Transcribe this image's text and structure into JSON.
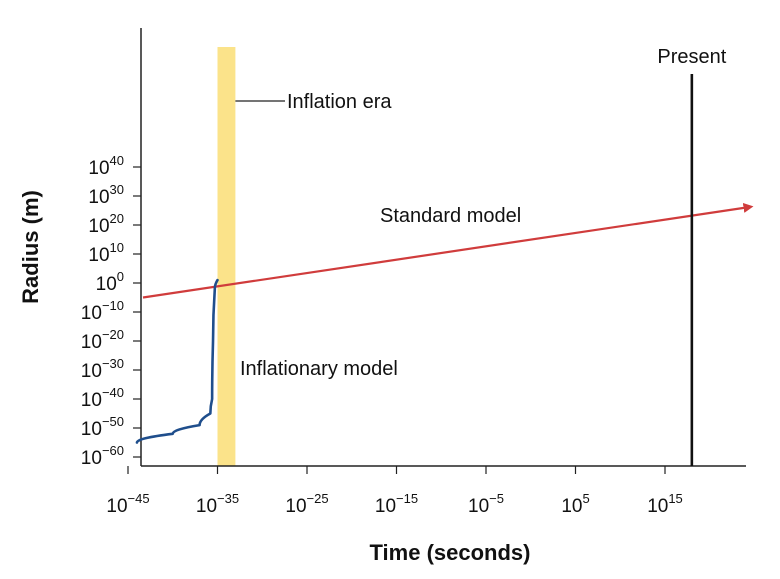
{
  "chart_data": {
    "type": "line",
    "title": "",
    "xlabel": "Time (seconds)",
    "ylabel": "Radius (m)",
    "x_scale": "log",
    "y_scale": "log",
    "x_ticks": [
      {
        "base": "10",
        "exp": "−45",
        "value": -45
      },
      {
        "base": "10",
        "exp": "−35",
        "value": -35
      },
      {
        "base": "10",
        "exp": "−25",
        "value": -25
      },
      {
        "base": "10",
        "exp": "−15",
        "value": -15
      },
      {
        "base": "10",
        "exp": "−5",
        "value": -5
      },
      {
        "base": "10",
        "exp": "5",
        "value": 5
      },
      {
        "base": "10",
        "exp": "15",
        "value": 15
      }
    ],
    "y_ticks": [
      {
        "base": "10",
        "exp": "40",
        "value": 40
      },
      {
        "base": "10",
        "exp": "30",
        "value": 30
      },
      {
        "base": "10",
        "exp": "20",
        "value": 20
      },
      {
        "base": "10",
        "exp": "10",
        "value": 10
      },
      {
        "base": "10",
        "exp": "0",
        "value": 0
      },
      {
        "base": "10",
        "exp": "−10",
        "value": -10
      },
      {
        "base": "10",
        "exp": "−20",
        "value": -20
      },
      {
        "base": "10",
        "exp": "−30",
        "value": -30
      },
      {
        "base": "10",
        "exp": "−40",
        "value": -40
      },
      {
        "base": "10",
        "exp": "−50",
        "value": -50
      },
      {
        "base": "10",
        "exp": "−60",
        "value": -60
      }
    ],
    "series": [
      {
        "name": "Standard model",
        "color": "#d03c3c",
        "x": [
          -45,
          24
        ],
        "y": [
          -5,
          26
        ]
      },
      {
        "name": "Inflationary model",
        "color": "#1f4e8c",
        "x": [
          -44,
          -40,
          -37,
          -35.8,
          -35.6,
          -35.5,
          -35.3,
          -35.0
        ],
        "y": [
          -55,
          -52,
          -49,
          -45,
          -40,
          -20,
          -2,
          1
        ]
      }
    ],
    "annotations": {
      "inflation_era": {
        "label": "Inflation era",
        "x_start": -35,
        "x_end": -33,
        "color": "#fbe38a"
      },
      "present": {
        "label": "Present",
        "x": 18
      }
    }
  }
}
